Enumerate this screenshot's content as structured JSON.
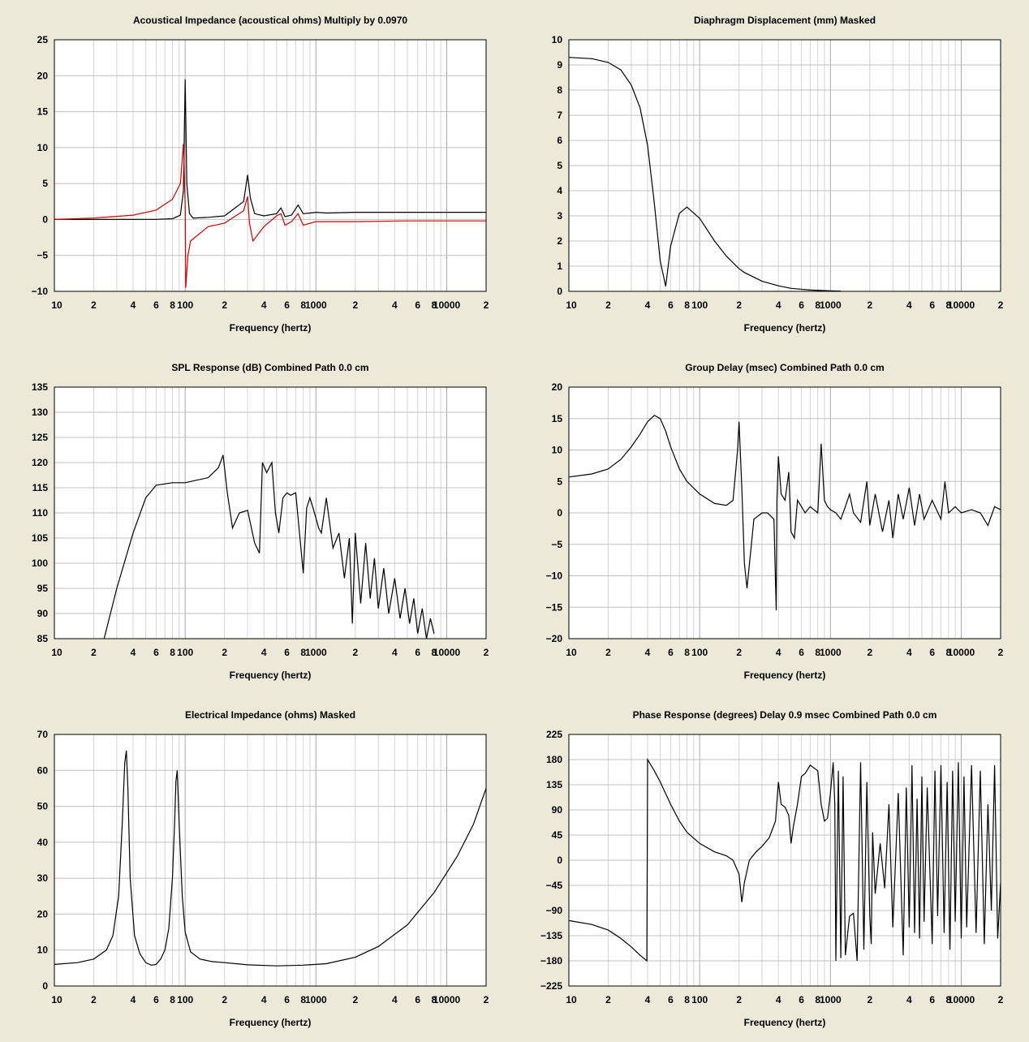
{
  "colors": {
    "background": "#ece9d8",
    "plot_bg": "#ffffff",
    "grid": "#c0c0c0",
    "trace": "#000000",
    "trace2": "#d00000"
  },
  "chart_data": [
    {
      "type": "line",
      "title": "Acoustical Impedance (acoustical ohms)    Multiply by 0.0970",
      "xlabel": "Frequency (hertz)",
      "xscale": "log",
      "xlim": [
        10,
        20000
      ],
      "ylim": [
        -10,
        25
      ],
      "x_ticks": [
        "10",
        "2",
        "4",
        "6",
        "8",
        "100",
        "2",
        "4",
        "6",
        "8",
        "1000",
        "2",
        "4",
        "6",
        "8",
        "10000",
        "2"
      ],
      "y_ticks": [
        "25",
        "20",
        "15",
        "10",
        "5",
        "0",
        "−5",
        "−10"
      ],
      "grid": true,
      "series": [
        {
          "color": "#000000",
          "x": [
            10,
            30,
            60,
            80,
            92,
            97,
            100,
            103,
            108,
            115,
            150,
            200,
            280,
            300,
            315,
            340,
            400,
            500,
            540,
            580,
            650,
            730,
            800,
            900,
            1000,
            1200,
            2000,
            5000,
            10000,
            20000
          ],
          "y": [
            0,
            0,
            0.02,
            0.1,
            0.6,
            4,
            19.5,
            5,
            0.8,
            0.2,
            0.3,
            0.5,
            2.5,
            6.2,
            3,
            0.8,
            0.5,
            0.8,
            1.6,
            0.4,
            0.6,
            2.0,
            0.8,
            0.9,
            1.0,
            0.9,
            1.0,
            1.0,
            1.0,
            1.0
          ]
        },
        {
          "color": "#d00000",
          "x": [
            10,
            20,
            40,
            60,
            80,
            92,
            97,
            100,
            101,
            105,
            110,
            150,
            200,
            280,
            300,
            310,
            330,
            400,
            500,
            540,
            580,
            650,
            730,
            800,
            1000,
            2000,
            5000,
            10000,
            20000
          ],
          "y": [
            0,
            0.2,
            0.6,
            1.3,
            2.8,
            5,
            10.5,
            2,
            -9.5,
            -5,
            -3,
            -1,
            -0.5,
            1.2,
            3.2,
            -0.5,
            -3,
            -1,
            0.5,
            0.8,
            -0.8,
            -0.3,
            0.8,
            -0.8,
            -0.3,
            -0.3,
            -0.2,
            -0.2,
            -0.2
          ]
        }
      ]
    },
    {
      "type": "line",
      "title": "Diaphragm Displacement (mm)    Masked",
      "xlabel": "Frequency (hertz)",
      "xscale": "log",
      "xlim": [
        10,
        20000
      ],
      "ylim": [
        0,
        10
      ],
      "x_ticks": [
        "10",
        "2",
        "4",
        "6",
        "8",
        "100",
        "2",
        "4",
        "6",
        "8",
        "1000",
        "2",
        "4",
        "6",
        "8",
        "10000",
        "2"
      ],
      "y_ticks": [
        "10",
        "9",
        "8",
        "7",
        "6",
        "5",
        "4",
        "3",
        "2",
        "1",
        "0"
      ],
      "grid": true,
      "series": [
        {
          "color": "#000000",
          "x": [
            10,
            15,
            20,
            25,
            30,
            35,
            40,
            45,
            50,
            55,
            60,
            70,
            80,
            100,
            130,
            160,
            200,
            220,
            300,
            400,
            500,
            700,
            1000,
            1200
          ],
          "y": [
            9.3,
            9.25,
            9.1,
            8.8,
            8.2,
            7.3,
            5.8,
            3.5,
            1.2,
            0.2,
            1.8,
            3.1,
            3.35,
            2.9,
            2.0,
            1.4,
            0.9,
            0.75,
            0.4,
            0.22,
            0.12,
            0.05,
            0.02,
            0.01
          ]
        }
      ]
    },
    {
      "type": "line",
      "title": "SPL Response (dB)    Combined    Path 0.0 cm",
      "xlabel": "Frequency (hertz)",
      "xscale": "log",
      "xlim": [
        10,
        20000
      ],
      "ylim": [
        85,
        135
      ],
      "x_ticks": [
        "10",
        "2",
        "4",
        "6",
        "8",
        "100",
        "2",
        "4",
        "6",
        "8",
        "1000",
        "2",
        "4",
        "6",
        "8",
        "10000",
        "2"
      ],
      "y_ticks": [
        "135",
        "130",
        "125",
        "120",
        "115",
        "110",
        "105",
        "100",
        "95",
        "90",
        "85"
      ],
      "grid": true,
      "series": [
        {
          "color": "#000000",
          "x": [
            24,
            30,
            40,
            50,
            60,
            80,
            100,
            150,
            180,
            195,
            210,
            230,
            260,
            300,
            340,
            370,
            390,
            420,
            460,
            490,
            520,
            560,
            600,
            640,
            700,
            800,
            850,
            900,
            950,
            1050,
            1100,
            1200,
            1350,
            1500,
            1650,
            1800,
            1900,
            2000,
            2200,
            2400,
            2600,
            2800,
            3000,
            3300,
            3600,
            4000,
            4400,
            4800,
            5200,
            5600,
            6000,
            6500,
            7000,
            7500,
            8000
          ],
          "y": [
            85,
            95,
            106,
            113,
            115.5,
            116,
            116,
            117,
            119,
            121.5,
            114,
            107,
            110,
            110.5,
            104,
            102,
            120,
            118,
            120,
            110,
            106,
            113,
            114,
            113.5,
            114,
            98,
            111,
            113,
            111,
            107,
            106,
            113,
            103,
            106,
            97,
            105,
            88,
            106,
            92,
            104,
            93,
            101,
            91,
            99,
            90,
            97,
            89,
            95,
            88,
            93,
            86,
            91,
            85,
            89,
            86
          ]
        }
      ]
    },
    {
      "type": "line",
      "title": "Group Delay (msec)    Combined    Path 0.0 cm",
      "xlabel": "Frequency (hertz)",
      "xscale": "log",
      "xlim": [
        10,
        20000
      ],
      "ylim": [
        -20,
        20
      ],
      "x_ticks": [
        "10",
        "2",
        "4",
        "6",
        "8",
        "100",
        "2",
        "4",
        "6",
        "8",
        "1000",
        "2",
        "4",
        "6",
        "8",
        "10000",
        "2"
      ],
      "y_ticks": [
        "20",
        "15",
        "10",
        "5",
        "0",
        "−5",
        "−10",
        "−15",
        "−20"
      ],
      "grid": true,
      "series": [
        {
          "color": "#000000",
          "x": [
            10,
            15,
            20,
            25,
            30,
            35,
            40,
            45,
            50,
            55,
            60,
            70,
            80,
            100,
            130,
            160,
            180,
            195,
            200,
            210,
            220,
            230,
            260,
            300,
            330,
            370,
            385,
            390,
            400,
            420,
            450,
            480,
            500,
            530,
            560,
            600,
            640,
            700,
            800,
            850,
            900,
            950,
            1000,
            1100,
            1200,
            1300,
            1400,
            1500,
            1700,
            1900,
            2000,
            2200,
            2500,
            2800,
            3000,
            3300,
            3600,
            4000,
            4400,
            4800,
            5200,
            6000,
            7000,
            7500,
            8000,
            9000,
            10000,
            12000,
            14000,
            16000,
            18000,
            20000
          ],
          "y": [
            5.7,
            6.2,
            7.0,
            8.5,
            10.5,
            12.5,
            14.5,
            15.5,
            15,
            13,
            10.5,
            7,
            5,
            3,
            1.5,
            1.2,
            2,
            10,
            14.5,
            4,
            -8,
            -12,
            -1,
            0,
            0,
            -1,
            -15.5,
            2,
            9,
            3,
            2,
            6.5,
            -3,
            -4,
            2,
            1,
            0,
            1,
            0,
            11,
            2,
            1,
            0.5,
            0,
            -1,
            1,
            3,
            0,
            -1.5,
            5,
            -2,
            3,
            -3,
            2,
            -4,
            3,
            -1,
            4,
            -2,
            3,
            -1,
            2,
            -1,
            5,
            0,
            1,
            0,
            0.5,
            0,
            -2,
            1,
            0.5
          ]
        }
      ]
    },
    {
      "type": "line",
      "title": "Electrical Impedance (ohms)    Masked",
      "xlabel": "Frequency (hertz)",
      "xscale": "log",
      "xlim": [
        10,
        20000
      ],
      "ylim": [
        0,
        70
      ],
      "x_ticks": [
        "10",
        "2",
        "4",
        "6",
        "8",
        "100",
        "2",
        "4",
        "6",
        "8",
        "1000",
        "2",
        "4",
        "6",
        "8",
        "10000",
        "2"
      ],
      "y_ticks": [
        "70",
        "60",
        "50",
        "40",
        "30",
        "20",
        "10",
        "0"
      ],
      "grid": true,
      "series": [
        {
          "color": "#000000",
          "x": [
            10,
            15,
            20,
            25,
            28,
            31,
            33,
            34.5,
            35.5,
            36.5,
            38,
            41,
            45,
            50,
            55,
            60,
            65,
            70,
            75,
            80,
            83,
            85,
            87,
            90,
            95,
            100,
            110,
            130,
            160,
            200,
            300,
            500,
            800,
            1200,
            2000,
            3000,
            5000,
            8000,
            12000,
            16000,
            20000
          ],
          "y": [
            6,
            6.5,
            7.5,
            10,
            14,
            25,
            45,
            62,
            65.5,
            55,
            30,
            14,
            9,
            6.5,
            5.8,
            6,
            7.5,
            10,
            16,
            30,
            45,
            57,
            60,
            45,
            25,
            15,
            9.5,
            7.5,
            6.8,
            6.5,
            5.9,
            5.6,
            5.8,
            6.2,
            8,
            11,
            17,
            26,
            36,
            45,
            55
          ]
        }
      ]
    },
    {
      "type": "line",
      "title": "Phase Response (degrees)    Delay 0.9 msec    Combined    Path 0.0 cm",
      "xlabel": "Frequency (hertz)",
      "xscale": "log",
      "xlim": [
        10,
        20000
      ],
      "ylim": [
        -225,
        225
      ],
      "x_ticks": [
        "10",
        "2",
        "4",
        "6",
        "8",
        "100",
        "2",
        "4",
        "6",
        "8",
        "1000",
        "2",
        "4",
        "6",
        "8",
        "10000",
        "2"
      ],
      "y_ticks": [
        "225",
        "180",
        "135",
        "90",
        "45",
        "0",
        "−45",
        "−90",
        "−135",
        "−180",
        "−225"
      ],
      "grid": true,
      "series": [
        {
          "color": "#000000",
          "x": [
            10,
            15,
            20,
            25,
            30,
            35,
            39.5,
            40,
            45,
            50,
            60,
            70,
            80,
            100,
            130,
            160,
            180,
            200,
            210,
            220,
            240,
            270,
            300,
            340,
            380,
            400,
            420,
            450,
            480,
            500,
            520,
            560,
            600,
            640,
            700,
            800,
            850,
            900,
            950,
            1000,
            1050,
            1080,
            1100,
            1150,
            1200,
            1250,
            1300,
            1400,
            1500,
            1600,
            1700,
            1800,
            1900,
            2000,
            2050,
            2100,
            2200,
            2400,
            2600,
            2800,
            3000,
            3300,
            3600,
            3800,
            4000,
            4200,
            4400,
            4600,
            4800,
            5000,
            5200,
            5500,
            6000,
            6300,
            6600,
            7000,
            7400,
            7800,
            8200,
            8600,
            9000,
            9500,
            10000,
            10500,
            11000,
            12000,
            13000,
            14000,
            15000,
            16000,
            17000,
            18000,
            19000,
            20000
          ],
          "y": [
            -108,
            -115,
            -125,
            -140,
            -155,
            -170,
            -180,
            180,
            160,
            140,
            100,
            70,
            50,
            30,
            15,
            8,
            0,
            -25,
            -75,
            -40,
            0,
            15,
            25,
            40,
            70,
            140,
            100,
            95,
            80,
            30,
            60,
            100,
            150,
            155,
            170,
            160,
            100,
            70,
            75,
            120,
            175,
            100,
            -180,
            160,
            -175,
            150,
            -170,
            -100,
            -95,
            -180,
            175,
            -160,
            140,
            -100,
            -150,
            50,
            -60,
            30,
            -50,
            100,
            -120,
            120,
            -170,
            130,
            -120,
            170,
            -130,
            110,
            -140,
            150,
            -110,
            130,
            -150,
            160,
            -100,
            170,
            -130,
            140,
            -160,
            160,
            -110,
            175,
            -140,
            150,
            -120,
            170,
            -130,
            160,
            -150,
            100,
            -90,
            170,
            -140,
            -40
          ]
        }
      ]
    }
  ]
}
